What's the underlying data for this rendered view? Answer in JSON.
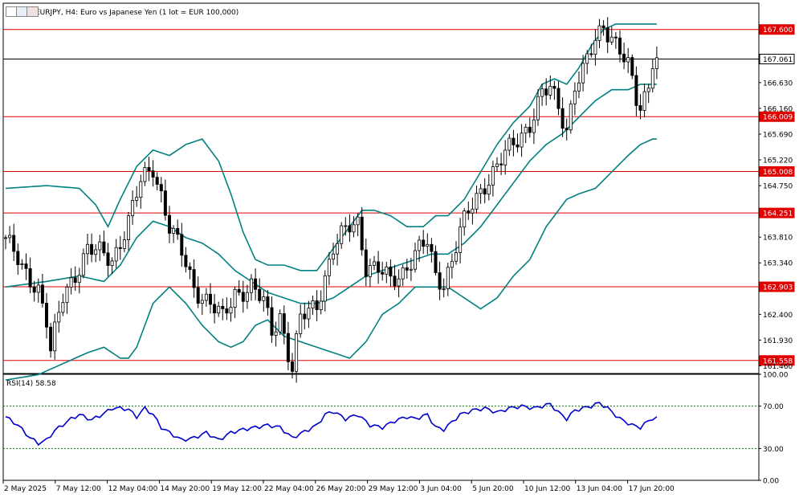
{
  "header": {
    "symbol_title": "EURJPY, H4:  Euro vs Japanese Yen (1 lot = EUR 100,000)",
    "icons": [
      "window-icon",
      "chart-icon",
      "chart-icon"
    ]
  },
  "colors": {
    "candle": "#000000",
    "bollinger": "#008080",
    "level_line": "#e00000",
    "level_tag_bg": "#e00000",
    "current_price_line": "#000000",
    "rsi_line": "#0000cc",
    "rsi_level": "#008000"
  },
  "chart_data": [
    {
      "type": "candlestick",
      "symbol": "EURJPY",
      "timeframe": "H4",
      "title": "EURJPY, H4:  Euro vs Japanese Yen (1 lot = EUR 100,000)",
      "ylim": [
        161.32,
        168.08
      ],
      "y_ticks": [
        "167.600",
        "167.061",
        "166.630",
        "166.160",
        "166.009",
        "165.690",
        "165.220",
        "165.008",
        "164.750",
        "164.251",
        "163.810",
        "163.340",
        "162.903",
        "162.400",
        "161.930",
        "161.558",
        "161.460"
      ],
      "x_tick_labels": [
        "2 May 2025",
        "7 May 12:00",
        "12 May 04:00",
        "14 May 20:00",
        "19 May 12:00",
        "22 May 04:00",
        "26 May 20:00",
        "29 May 12:00",
        "3 Jun 04:00",
        "5 Jun 20:00",
        "10 Jun 12:00",
        "13 Jun 04:00",
        "17 Jun 20:00"
      ],
      "current_price": 167.061,
      "horizontal_levels": [
        167.6,
        166.009,
        165.008,
        164.251,
        162.903,
        161.558
      ],
      "indicators": [
        "Bollinger Bands"
      ],
      "close_path": [
        [
          0,
          163.8
        ],
        [
          4,
          163.2
        ],
        [
          8,
          162.9
        ],
        [
          10,
          162.3
        ],
        [
          11,
          161.7
        ],
        [
          14,
          162.7
        ],
        [
          20,
          163.6
        ],
        [
          26,
          163.4
        ],
        [
          30,
          164.1
        ],
        [
          33,
          164.8
        ],
        [
          36,
          165.1
        ],
        [
          38,
          164.6
        ],
        [
          40,
          164.0
        ],
        [
          43,
          163.5
        ],
        [
          46,
          162.9
        ],
        [
          50,
          162.6
        ],
        [
          53,
          162.3
        ],
        [
          56,
          162.8
        ],
        [
          60,
          162.9
        ],
        [
          63,
          162.6
        ],
        [
          65,
          162.1
        ],
        [
          67,
          162.4
        ],
        [
          69,
          161.7
        ],
        [
          70,
          161.4
        ],
        [
          72,
          162.3
        ],
        [
          76,
          162.6
        ],
        [
          80,
          163.6
        ],
        [
          84,
          164.0
        ],
        [
          86,
          164.1
        ],
        [
          88,
          163.3
        ],
        [
          91,
          163.2
        ],
        [
          94,
          163.0
        ],
        [
          97,
          163.2
        ],
        [
          100,
          163.5
        ],
        [
          103,
          163.7
        ],
        [
          105,
          163.1
        ],
        [
          107,
          163.0
        ],
        [
          109,
          163.4
        ],
        [
          111,
          163.9
        ],
        [
          114,
          164.4
        ],
        [
          117,
          164.8
        ],
        [
          120,
          165.1
        ],
        [
          124,
          165.5
        ],
        [
          128,
          165.9
        ],
        [
          131,
          166.4
        ],
        [
          133,
          166.5
        ],
        [
          135,
          166.2
        ],
        [
          137,
          165.8
        ],
        [
          139,
          166.6
        ],
        [
          141,
          166.8
        ],
        [
          144,
          167.4
        ],
        [
          146,
          167.7
        ],
        [
          148,
          167.5
        ],
        [
          150,
          167.2
        ],
        [
          152,
          166.9
        ],
        [
          153,
          166.6
        ],
        [
          154,
          166.3
        ],
        [
          155,
          166.2
        ],
        [
          157,
          166.6
        ],
        [
          158,
          167.1
        ]
      ],
      "bollinger_upper_path": [
        [
          0,
          164.7
        ],
        [
          10,
          164.75
        ],
        [
          18,
          164.7
        ],
        [
          22,
          164.4
        ],
        [
          25,
          164.0
        ],
        [
          28,
          164.5
        ],
        [
          32,
          165.1
        ],
        [
          36,
          165.4
        ],
        [
          40,
          165.3
        ],
        [
          44,
          165.5
        ],
        [
          48,
          165.6
        ],
        [
          52,
          165.2
        ],
        [
          55,
          164.6
        ],
        [
          58,
          163.9
        ],
        [
          61,
          163.4
        ],
        [
          64,
          163.3
        ],
        [
          68,
          163.3
        ],
        [
          72,
          163.2
        ],
        [
          76,
          163.2
        ],
        [
          80,
          163.6
        ],
        [
          84,
          164.0
        ],
        [
          87,
          164.3
        ],
        [
          90,
          164.3
        ],
        [
          94,
          164.2
        ],
        [
          98,
          164.0
        ],
        [
          102,
          164.0
        ],
        [
          105,
          164.2
        ],
        [
          108,
          164.2
        ],
        [
          112,
          164.5
        ],
        [
          116,
          165.0
        ],
        [
          120,
          165.5
        ],
        [
          124,
          165.9
        ],
        [
          128,
          166.2
        ],
        [
          131,
          166.6
        ],
        [
          134,
          166.7
        ],
        [
          137,
          166.6
        ],
        [
          140,
          166.9
        ],
        [
          143,
          167.3
        ],
        [
          146,
          167.6
        ],
        [
          149,
          167.7
        ],
        [
          152,
          167.7
        ],
        [
          155,
          167.7
        ],
        [
          158,
          167.7
        ]
      ],
      "bollinger_middle_path": [
        [
          0,
          162.9
        ],
        [
          10,
          163.0
        ],
        [
          18,
          163.1
        ],
        [
          24,
          163.0
        ],
        [
          28,
          163.3
        ],
        [
          32,
          163.8
        ],
        [
          36,
          164.1
        ],
        [
          40,
          164.0
        ],
        [
          44,
          163.8
        ],
        [
          48,
          163.7
        ],
        [
          52,
          163.5
        ],
        [
          56,
          163.2
        ],
        [
          60,
          163.0
        ],
        [
          64,
          162.8
        ],
        [
          68,
          162.7
        ],
        [
          72,
          162.6
        ],
        [
          76,
          162.6
        ],
        [
          80,
          162.7
        ],
        [
          84,
          162.9
        ],
        [
          88,
          163.1
        ],
        [
          92,
          163.2
        ],
        [
          96,
          163.3
        ],
        [
          100,
          163.4
        ],
        [
          104,
          163.5
        ],
        [
          108,
          163.5
        ],
        [
          112,
          163.7
        ],
        [
          116,
          164.0
        ],
        [
          120,
          164.4
        ],
        [
          124,
          164.8
        ],
        [
          128,
          165.2
        ],
        [
          132,
          165.5
        ],
        [
          136,
          165.7
        ],
        [
          140,
          166.0
        ],
        [
          144,
          166.3
        ],
        [
          148,
          166.5
        ],
        [
          152,
          166.5
        ],
        [
          155,
          166.6
        ],
        [
          158,
          166.6
        ]
      ],
      "bollinger_lower_path": [
        [
          0,
          161.2
        ],
        [
          8,
          161.3
        ],
        [
          14,
          161.5
        ],
        [
          20,
          161.7
        ],
        [
          24,
          161.8
        ],
        [
          28,
          161.6
        ],
        [
          30,
          161.6
        ],
        [
          32,
          161.8
        ],
        [
          36,
          162.6
        ],
        [
          40,
          162.9
        ],
        [
          44,
          162.6
        ],
        [
          48,
          162.2
        ],
        [
          52,
          161.9
        ],
        [
          55,
          161.8
        ],
        [
          58,
          161.9
        ],
        [
          61,
          162.2
        ],
        [
          64,
          162.3
        ],
        [
          68,
          162.0
        ],
        [
          72,
          161.9
        ],
        [
          76,
          161.8
        ],
        [
          80,
          161.7
        ],
        [
          84,
          161.6
        ],
        [
          88,
          161.9
        ],
        [
          92,
          162.4
        ],
        [
          96,
          162.6
        ],
        [
          100,
          162.9
        ],
        [
          104,
          162.9
        ],
        [
          108,
          162.9
        ],
        [
          112,
          162.7
        ],
        [
          116,
          162.5
        ],
        [
          120,
          162.7
        ],
        [
          124,
          163.1
        ],
        [
          128,
          163.4
        ],
        [
          132,
          164.0
        ],
        [
          134,
          164.2
        ],
        [
          137,
          164.5
        ],
        [
          140,
          164.6
        ],
        [
          144,
          164.7
        ],
        [
          148,
          165.0
        ],
        [
          152,
          165.3
        ],
        [
          155,
          165.5
        ],
        [
          158,
          165.6
        ]
      ]
    },
    {
      "type": "line",
      "title": "RSI(14) 58.58",
      "indicator": "RSI(14)",
      "value": 58.58,
      "ylim": [
        0,
        100
      ],
      "y_ticks": [
        "100.00",
        "70.00",
        "30.00",
        "0.00"
      ],
      "levels": [
        70,
        30
      ],
      "rsi_path": [
        [
          0,
          60
        ],
        [
          3,
          52
        ],
        [
          6,
          40
        ],
        [
          8,
          35
        ],
        [
          10,
          38
        ],
        [
          12,
          47
        ],
        [
          16,
          58
        ],
        [
          18,
          62
        ],
        [
          21,
          57
        ],
        [
          24,
          63
        ],
        [
          26,
          68
        ],
        [
          28,
          68
        ],
        [
          30,
          67
        ],
        [
          32,
          60
        ],
        [
          34,
          68
        ],
        [
          36,
          62
        ],
        [
          38,
          50
        ],
        [
          40,
          45
        ],
        [
          43,
          38
        ],
        [
          46,
          40
        ],
        [
          49,
          45
        ],
        [
          52,
          38
        ],
        [
          55,
          45
        ],
        [
          58,
          48
        ],
        [
          61,
          50
        ],
        [
          64,
          52
        ],
        [
          67,
          50
        ],
        [
          70,
          40
        ],
        [
          73,
          46
        ],
        [
          76,
          52
        ],
        [
          78,
          62
        ],
        [
          80,
          65
        ],
        [
          83,
          58
        ],
        [
          86,
          62
        ],
        [
          89,
          52
        ],
        [
          92,
          50
        ],
        [
          95,
          56
        ],
        [
          98,
          60
        ],
        [
          100,
          58
        ],
        [
          103,
          62
        ],
        [
          105,
          50
        ],
        [
          107,
          48
        ],
        [
          109,
          55
        ],
        [
          111,
          62
        ],
        [
          114,
          66
        ],
        [
          117,
          68
        ],
        [
          120,
          64
        ],
        [
          123,
          68
        ],
        [
          126,
          70
        ],
        [
          129,
          68
        ],
        [
          131,
          70
        ],
        [
          133,
          72
        ],
        [
          135,
          64
        ],
        [
          137,
          58
        ],
        [
          139,
          66
        ],
        [
          141,
          68
        ],
        [
          143,
          70
        ],
        [
          145,
          73
        ],
        [
          147,
          68
        ],
        [
          150,
          58
        ],
        [
          153,
          52
        ],
        [
          155,
          50
        ],
        [
          157,
          56
        ],
        [
          158,
          58.58
        ]
      ]
    }
  ]
}
